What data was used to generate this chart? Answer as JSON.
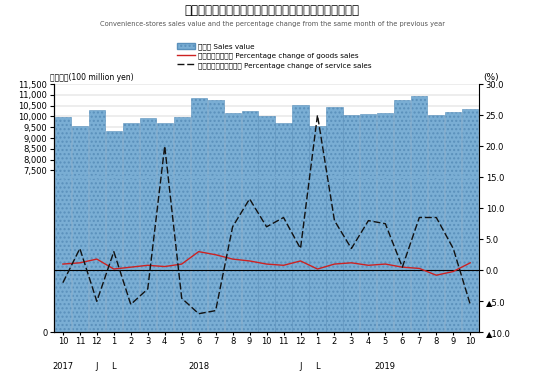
{
  "title_jp": "コンビニエンスストア販売額・前年同月比増減率の推移",
  "title_en": "Convenience-stores sales value and the percentage change from the same month of the previous year",
  "months": [
    "10",
    "11",
    "12",
    "1",
    "2",
    "3",
    "4",
    "5",
    "6",
    "7",
    "8",
    "9",
    "10",
    "11",
    "12",
    "1",
    "2",
    "3",
    "4",
    "5",
    "6",
    "7",
    "8",
    "9",
    "10"
  ],
  "bar_values": [
    9980,
    9540,
    10280,
    9330,
    9700,
    9920,
    9690,
    9960,
    10870,
    10740,
    10160,
    10230,
    10010,
    9690,
    10540,
    9540,
    10430,
    10060,
    10090,
    10160,
    10740,
    10930,
    10080,
    10200,
    10340
  ],
  "goods_pct": [
    1.0,
    1.2,
    1.8,
    0.2,
    0.5,
    0.8,
    0.6,
    1.0,
    3.0,
    2.5,
    1.8,
    1.5,
    1.0,
    0.8,
    1.5,
    0.2,
    1.0,
    1.2,
    0.8,
    1.0,
    0.5,
    0.3,
    -0.8,
    -0.2,
    1.2
  ],
  "service_pct": [
    -2.0,
    3.5,
    -5.0,
    3.0,
    -5.5,
    -3.0,
    20.0,
    -4.5,
    -7.0,
    -6.5,
    7.0,
    11.5,
    7.0,
    8.5,
    3.5,
    25.0,
    8.0,
    3.5,
    8.0,
    7.5,
    0.5,
    8.5,
    8.5,
    3.5,
    -5.5
  ],
  "bar_color": "#7aaed4",
  "bar_hatch_color": "#5a90bb",
  "goods_color": "#cc2222",
  "service_color": "#111111",
  "ylim_left": [
    0,
    11500
  ],
  "ylim_right": [
    -10,
    30
  ],
  "yticks_left": [
    0,
    7500,
    8000,
    8500,
    9000,
    9500,
    10000,
    10500,
    11000,
    11500
  ],
  "yticks_right": [
    -10.0,
    -5.0,
    0.0,
    5.0,
    10.0,
    15.0,
    20.0,
    25.0,
    30.0
  ],
  "legend_sales": "販売額 Sales value",
  "legend_goods": "商品販売額増減率 Percentage change of goods sales",
  "legend_service": "サービス売上高増減率 Percentage change of service sales",
  "ylabel_left": "（億円）(100 million yen)",
  "ylabel_right": "(%)",
  "year_labels": [
    {
      "label": "2017",
      "idx": 0
    },
    {
      "label": "J",
      "idx": 2
    },
    {
      "label": "L",
      "idx": 3
    },
    {
      "label": "2018",
      "idx": 8
    },
    {
      "label": "J",
      "idx": 14
    },
    {
      "label": "L",
      "idx": 15
    },
    {
      "label": "2019",
      "idx": 19
    }
  ]
}
